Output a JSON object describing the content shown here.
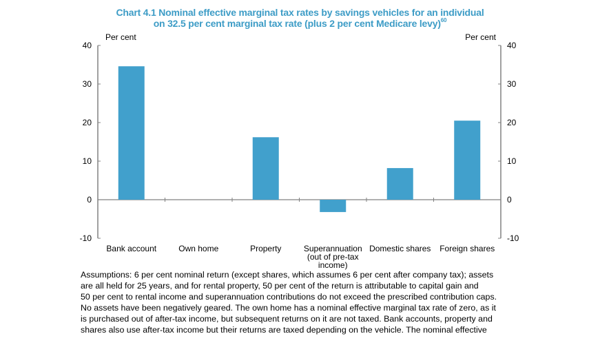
{
  "title_line1": "Chart 4.1 Nominal effective marginal tax rates by savings vehicles for an individual",
  "title_line2": "on 32.5 per cent marginal tax rate (plus 2 per cent Medicare levy)",
  "title_footnote": "60",
  "chart_data": {
    "type": "bar",
    "categories": [
      "Bank account",
      "Own home",
      "Property",
      "Superannuation (out of pre-tax income)",
      "Domestic shares",
      "Foreign shares"
    ],
    "category_label_lines": [
      [
        "Bank account"
      ],
      [
        "Own home"
      ],
      [
        "Property"
      ],
      [
        "Superannuation",
        "(out of pre-tax",
        "income)"
      ],
      [
        "Domestic shares"
      ],
      [
        "Foreign shares"
      ]
    ],
    "values": [
      34.6,
      0,
      16.2,
      -3.2,
      8.2,
      20.5
    ],
    "ylabel_left": "Per cent",
    "ylabel_right": "Per cent",
    "ylim": [
      -10,
      40
    ],
    "yticks": [
      40,
      30,
      20,
      10,
      0,
      -10
    ],
    "grid": false,
    "bar_color": "#41a0cc"
  },
  "notes": [
    "Assumptions: 6 per cent nominal return (except shares, which assumes 6 per cent after company tax); assets",
    "are all held for 25 years, and for rental property, 50 per cent of the return is attributable to capital gain and",
    "50 per cent to rental income and superannuation contributions do not exceed the prescribed contribution caps.",
    "No assets have been negatively geared. The own home has a nominal effective marginal tax rate of zero, as it",
    "is purchased out of after-tax income, but subsequent returns on it are not taxed. Bank accounts, property and",
    "shares also use after-tax income but their returns are taxed depending on the vehicle. The nominal effective"
  ]
}
